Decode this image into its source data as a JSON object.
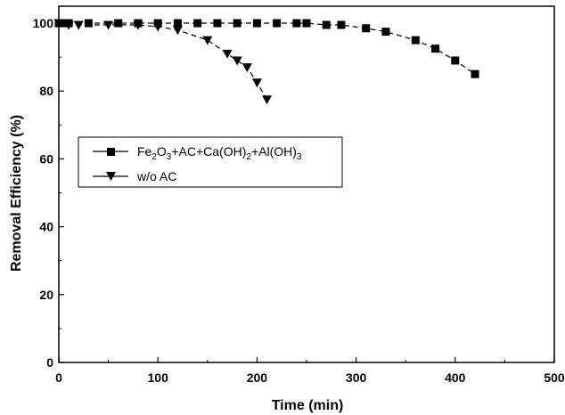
{
  "chart_data": {
    "type": "line",
    "xlabel": "Time (min)",
    "ylabel": "Removal Efficiency (%)",
    "xlim": [
      0,
      500
    ],
    "ylim": [
      0,
      105
    ],
    "xticks": [
      "0",
      "100",
      "200",
      "300",
      "400",
      "500"
    ],
    "yticks": [
      "0",
      "20",
      "40",
      "60",
      "80",
      "100"
    ],
    "grid": false,
    "legend_position": "middle-left",
    "series": [
      {
        "name": "Fe2O3+AC+Ca(OH)2+Al(OH)3",
        "marker": "square",
        "line_style": "dashed",
        "x": [
          0,
          5,
          10,
          30,
          60,
          80,
          100,
          120,
          140,
          160,
          180,
          200,
          220,
          240,
          250,
          270,
          285,
          310,
          330,
          360,
          380,
          400,
          420
        ],
        "y": [
          100,
          100,
          100,
          100,
          100,
          100,
          100,
          100,
          100,
          100,
          100,
          100,
          100,
          100,
          100,
          99.5,
          99.5,
          98.5,
          97.5,
          95,
          92.5,
          89,
          85
        ]
      },
      {
        "name": "w/o AC",
        "marker": "triangle-down",
        "line_style": "dashed",
        "x": [
          0,
          10,
          20,
          50,
          80,
          100,
          120,
          150,
          170,
          180,
          190,
          200,
          210
        ],
        "y": [
          100,
          99.5,
          99.5,
          99.5,
          99.5,
          99,
          98,
          95,
          91,
          89,
          87,
          82.5,
          77.5
        ]
      }
    ]
  },
  "legend": {
    "series1_parts": [
      "Fe",
      "2",
      "O",
      "3",
      "+AC+Ca(OH)",
      "2",
      "+Al(OH)",
      "3"
    ],
    "series2_label": "w/o AC"
  }
}
